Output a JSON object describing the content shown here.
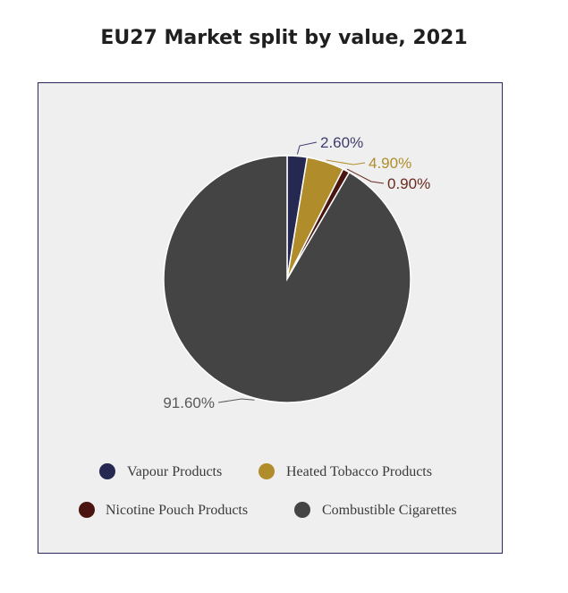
{
  "chart_data": {
    "type": "pie",
    "title": "EU27 Market split by value, 2021",
    "slices": [
      {
        "name": "Vapour Products",
        "value": 2.6,
        "label": "2.60%",
        "color": "#252850",
        "label_color": "#3d3d6e"
      },
      {
        "name": "Heated Tobacco Products",
        "value": 4.9,
        "label": "4.90%",
        "color": "#b08d2a",
        "label_color": "#b08d2a"
      },
      {
        "name": "Nicotine Pouch Products",
        "value": 0.9,
        "label": "0.90%",
        "color": "#4a1410",
        "label_color": "#6a2a20"
      },
      {
        "name": "Combustible Cigarettes",
        "value": 91.6,
        "label": "91.60%",
        "color": "#444444",
        "label_color": "#595959"
      }
    ],
    "legend": [
      "Vapour Products",
      "Heated Tobacco Products",
      "Nicotine Pouch Products",
      "Combustible Cigarettes"
    ],
    "legend_placement": "bottom"
  }
}
